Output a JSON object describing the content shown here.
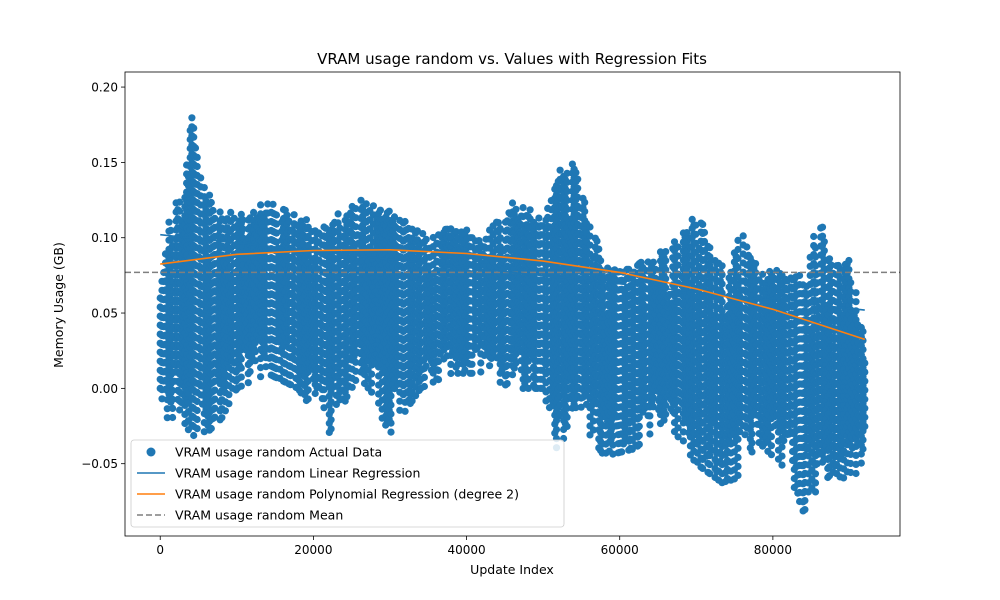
{
  "chart_data": {
    "type": "scatter",
    "title": "VRAM usage random vs. Values with Regression Fits",
    "xlabel": "Update Index",
    "ylabel": "Memory Usage (GB)",
    "xlim": [
      -4600,
      96600
    ],
    "ylim": [
      -0.098,
      0.21
    ],
    "xticks": [
      0,
      20000,
      40000,
      60000,
      80000
    ],
    "yticks": [
      -0.05,
      0.0,
      0.05,
      0.1,
      0.15,
      0.2
    ],
    "ytick_labels": [
      "−0.05",
      "0.00",
      "0.05",
      "0.10",
      "0.15",
      "0.20"
    ],
    "grid": false,
    "legend_position": "lower-left",
    "colors": {
      "scatter": "#1f77b4",
      "linear": "#1f77b4",
      "poly": "#ff7f0e",
      "mean": "#7f7f7f"
    },
    "series": [
      {
        "name": "VRAM usage random Actual Data",
        "kind": "scatter"
      },
      {
        "name": "VRAM usage random Linear Regression",
        "kind": "line"
      },
      {
        "name": "VRAM usage random Polynomial Regression (degree 2)",
        "kind": "line"
      },
      {
        "name": "VRAM usage random Mean",
        "kind": "dashed-line"
      }
    ],
    "linear_regression": {
      "x": [
        0,
        92000
      ],
      "y": [
        0.102,
        0.052
      ]
    },
    "polynomial_regression": {
      "x": [
        0,
        10000,
        20000,
        30000,
        40000,
        50000,
        60000,
        70000,
        80000,
        92000
      ],
      "y": [
        0.0825,
        0.089,
        0.0915,
        0.092,
        0.0895,
        0.0845,
        0.077,
        0.066,
        0.0525,
        0.0325
      ]
    },
    "mean": 0.077,
    "scatter_envelope": {
      "x": [
        0,
        1000,
        2000,
        3000,
        4000,
        5000,
        6000,
        8000,
        10000,
        14000,
        18000,
        22000,
        26000,
        30000,
        34000,
        38000,
        42000,
        46000,
        50000,
        52000,
        54000,
        56000,
        58000,
        62000,
        66000,
        70000,
        74000,
        76000,
        78000,
        82000,
        84000,
        86000,
        88000,
        90000,
        92000
      ],
      "min": [
        0.0,
        -0.03,
        -0.02,
        -0.02,
        -0.035,
        -0.025,
        -0.03,
        -0.02,
        0.0,
        0.01,
        0.0,
        -0.03,
        0.01,
        -0.03,
        0.0,
        0.01,
        0.01,
        0.0,
        0.0,
        -0.045,
        -0.01,
        -0.03,
        -0.045,
        -0.04,
        -0.02,
        -0.05,
        -0.065,
        -0.055,
        -0.035,
        -0.055,
        -0.082,
        -0.065,
        -0.055,
        -0.065,
        -0.045
      ],
      "max": [
        0.065,
        0.11,
        0.135,
        0.12,
        0.195,
        0.155,
        0.135,
        0.12,
        0.115,
        0.127,
        0.115,
        0.115,
        0.128,
        0.122,
        0.105,
        0.113,
        0.1,
        0.125,
        0.115,
        0.148,
        0.155,
        0.125,
        0.083,
        0.085,
        0.092,
        0.118,
        0.08,
        0.118,
        0.078,
        0.085,
        0.075,
        0.117,
        0.085,
        0.09,
        0.035
      ]
    }
  }
}
